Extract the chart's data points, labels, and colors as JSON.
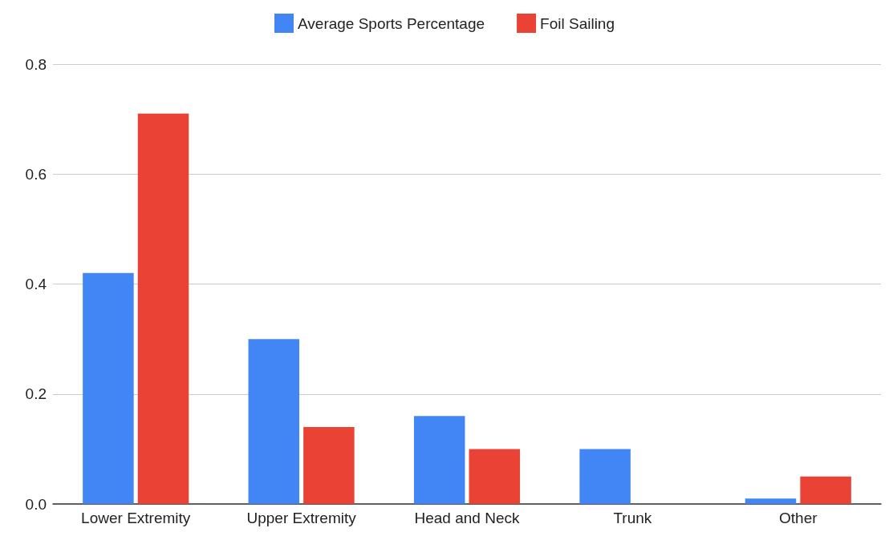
{
  "chart_data": {
    "type": "bar",
    "categories": [
      "Lower Extremity",
      "Upper Extremity",
      "Head and Neck",
      "Trunk",
      "Other"
    ],
    "series": [
      {
        "name": "Average Sports Percentage",
        "color": "#4285f4",
        "values": [
          0.42,
          0.3,
          0.16,
          0.1,
          0.01
        ]
      },
      {
        "name": "Foil Sailing",
        "color": "#ea4335",
        "values": [
          0.71,
          0.14,
          0.1,
          0,
          0.05
        ]
      }
    ],
    "ylim": [
      0,
      0.8
    ],
    "yticks": [
      {
        "value": 0,
        "label": "0.0"
      },
      {
        "value": 0.2,
        "label": "0.2"
      },
      {
        "value": 0.4,
        "label": "0.4"
      },
      {
        "value": 0.6,
        "label": "0.6"
      },
      {
        "value": 0.8,
        "label": "0.8"
      }
    ],
    "grid": "y",
    "legend": "top"
  }
}
